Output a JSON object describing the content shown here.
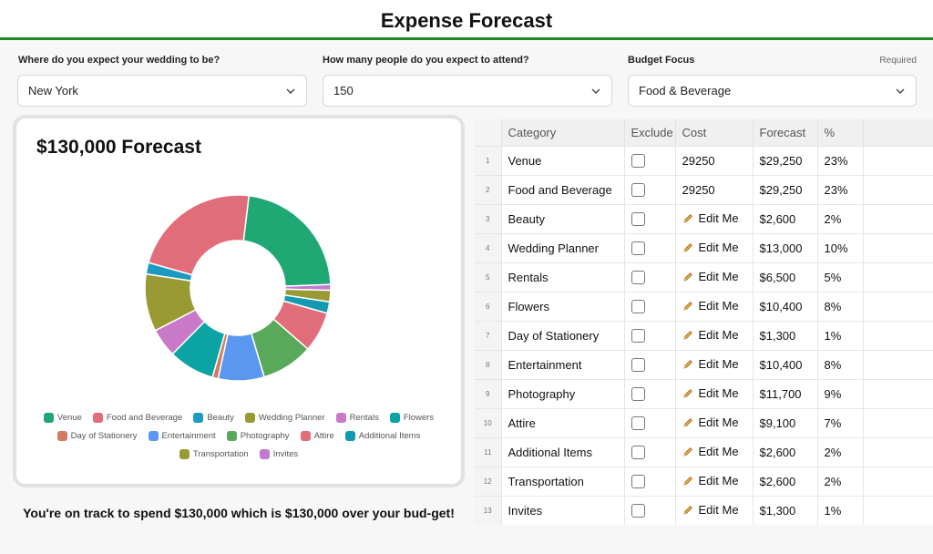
{
  "header": {
    "title": "Expense Forecast"
  },
  "form": {
    "location": {
      "label": "Where do you expect your wedding to be?",
      "value": "New York"
    },
    "attendance": {
      "label": "How many people do you expect to attend?",
      "value": "150"
    },
    "budget_focus": {
      "label": "Budget Focus",
      "value": "Food & Beverage",
      "required_label": "Required"
    }
  },
  "chart": {
    "title": "$130,000 Forecast"
  },
  "chart_data": {
    "type": "pie",
    "title": "$130,000 Forecast",
    "categories": [
      "Venue",
      "Food and Beverage",
      "Beauty",
      "Wedding Planner",
      "Rentals",
      "Flowers",
      "Day of Stationery",
      "Entertainment",
      "Photography",
      "Attire",
      "Additional Items",
      "Transportation",
      "Invites"
    ],
    "values": [
      29250,
      29250,
      2600,
      13000,
      6500,
      10400,
      1300,
      10400,
      11700,
      9100,
      2600,
      2600,
      1300
    ],
    "drawn_order": [
      "Venue",
      "Invites",
      "Transportation",
      "Additional Items",
      "Attire",
      "Photography",
      "Entertainment",
      "Day of Stationery",
      "Flowers",
      "Rentals",
      "Wedding Planner",
      "Beauty",
      "Food and Beverage"
    ],
    "colors": {
      "Venue": "#1fa774",
      "Food and Beverage": "#e26d7a",
      "Beauty": "#1d9ac0",
      "Wedding Planner": "#9a9a35",
      "Rentals": "#c87ac8",
      "Flowers": "#0ba3a3",
      "Day of Stationery": "#d47b62",
      "Entertainment": "#5a98ef",
      "Photography": "#5aa85a",
      "Attire": "#e26d7a",
      "Additional Items": "#119ab0",
      "Transportation": "#9a9a35",
      "Invites": "#c07ad0"
    },
    "legend_placement": "bottom"
  },
  "summary": {
    "text": "You're on track to spend $130,000 which is $130,000 over your bud-get!"
  },
  "table": {
    "headers": {
      "category": "Category",
      "exclude": "Exclude",
      "cost": "Cost",
      "forecast": "Forecast",
      "percent": "%"
    },
    "rows": [
      {
        "num": "1",
        "category": "Venue",
        "cost": "29250",
        "editable": false,
        "forecast": "$29,250",
        "percent": "23%"
      },
      {
        "num": "2",
        "category": "Food and Beverage",
        "cost": "29250",
        "editable": false,
        "forecast": "$29,250",
        "percent": "23%"
      },
      {
        "num": "3",
        "category": "Beauty",
        "cost": "Edit Me",
        "editable": true,
        "forecast": "$2,600",
        "percent": "2%"
      },
      {
        "num": "4",
        "category": "Wedding Planner",
        "cost": "Edit Me",
        "editable": true,
        "forecast": "$13,000",
        "percent": "10%"
      },
      {
        "num": "5",
        "category": "Rentals",
        "cost": "Edit Me",
        "editable": true,
        "forecast": "$6,500",
        "percent": "5%"
      },
      {
        "num": "6",
        "category": "Flowers",
        "cost": "Edit Me",
        "editable": true,
        "forecast": "$10,400",
        "percent": "8%"
      },
      {
        "num": "7",
        "category": "Day of Stationery",
        "cost": "Edit Me",
        "editable": true,
        "forecast": "$1,300",
        "percent": "1%"
      },
      {
        "num": "8",
        "category": "Entertainment",
        "cost": "Edit Me",
        "editable": true,
        "forecast": "$10,400",
        "percent": "8%"
      },
      {
        "num": "9",
        "category": "Photography",
        "cost": "Edit Me",
        "editable": true,
        "forecast": "$11,700",
        "percent": "9%"
      },
      {
        "num": "10",
        "category": "Attire",
        "cost": "Edit Me",
        "editable": true,
        "forecast": "$9,100",
        "percent": "7%"
      },
      {
        "num": "11",
        "category": "Additional Items",
        "cost": "Edit Me",
        "editable": true,
        "forecast": "$2,600",
        "percent": "2%"
      },
      {
        "num": "12",
        "category": "Transportation",
        "cost": "Edit Me",
        "editable": true,
        "forecast": "$2,600",
        "percent": "2%"
      },
      {
        "num": "13",
        "category": "Invites",
        "cost": "Edit Me",
        "editable": true,
        "forecast": "$1,300",
        "percent": "1%"
      }
    ]
  }
}
